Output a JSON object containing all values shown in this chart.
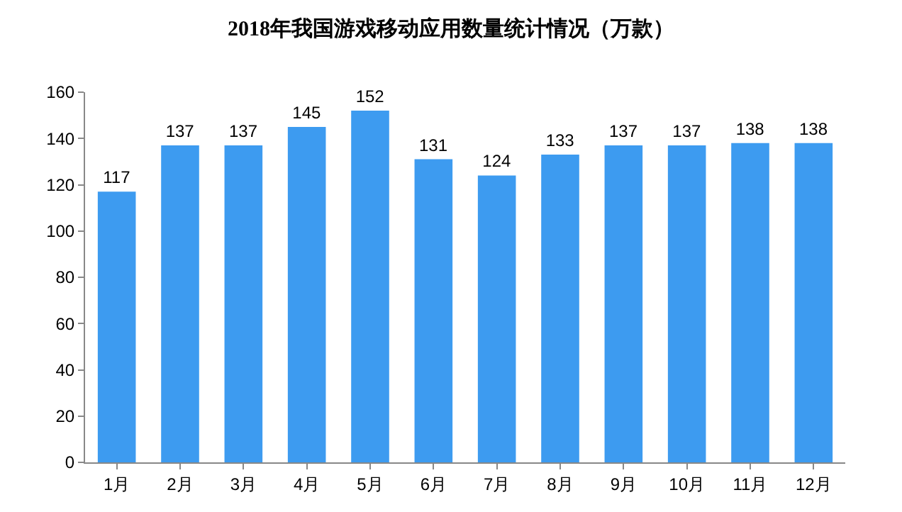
{
  "chart_data": {
    "type": "bar",
    "title": "2018年我国游戏移动应用数量统计情况（万款）",
    "categories": [
      "1月",
      "2月",
      "3月",
      "4月",
      "5月",
      "6月",
      "7月",
      "8月",
      "9月",
      "10月",
      "11月",
      "12月"
    ],
    "values": [
      117,
      137,
      137,
      145,
      152,
      131,
      124,
      133,
      137,
      137,
      138,
      138
    ],
    "color": "#3d9bf0",
    "ylim": [
      0,
      160
    ],
    "yticks": [
      0,
      20,
      40,
      60,
      80,
      100,
      120,
      140,
      160
    ],
    "data_labels": true
  }
}
